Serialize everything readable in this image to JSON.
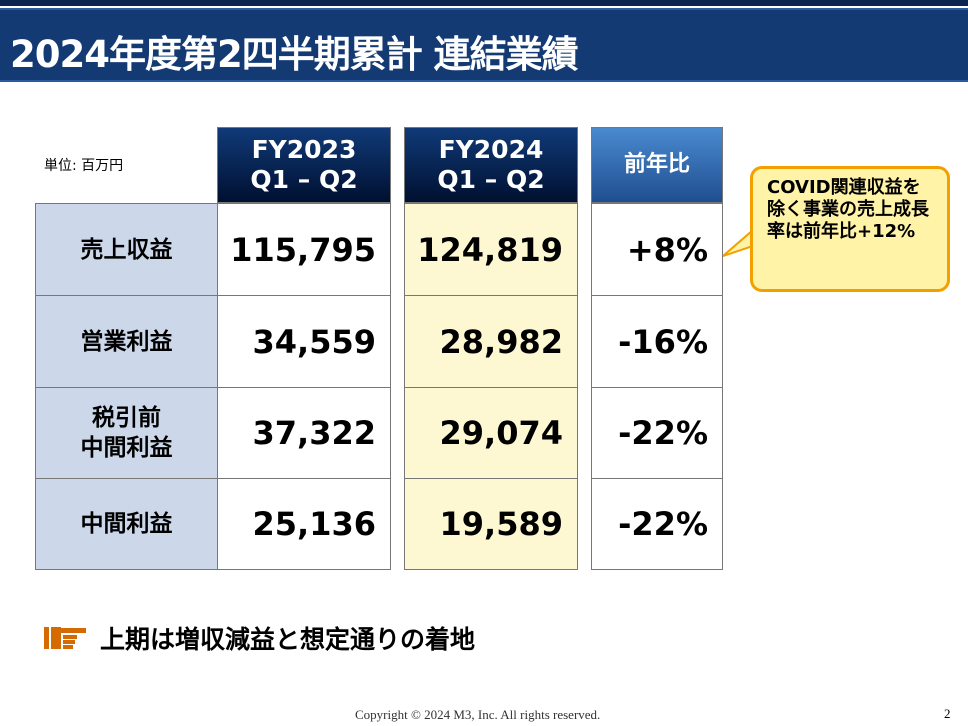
{
  "title": "2024年度第2四半期累計 連結業績",
  "unit": "単位: 百万円",
  "columns": [
    {
      "line1": "FY2023",
      "line2": "Q1 – Q2"
    },
    {
      "line1": "FY2024",
      "line2": "Q1 – Q2"
    },
    {
      "line1": "前年比"
    }
  ],
  "rows": [
    {
      "label1": "売上収益",
      "fy2023": "115,795",
      "fy2024": "124,819",
      "yoy": "+8%"
    },
    {
      "label1": "営業利益",
      "fy2023": "34,559",
      "fy2024": "28,982",
      "yoy": "-16%"
    },
    {
      "label1": "税引前",
      "label2": "中間利益",
      "fy2023": "37,322",
      "fy2024": "29,074",
      "yoy": "-22%"
    },
    {
      "label1": "中間利益",
      "fy2023": "25,136",
      "fy2024": "19,589",
      "yoy": "-22%"
    }
  ],
  "callout": "COVID関連収益を除く事業の売上成長率は前年比+12%",
  "summary": "上期は増収減益と想定通りの着地",
  "footer": "Copyright © 2024  M3, Inc.  All rights reserved.",
  "page": "2",
  "colors": {
    "title_bar": "#143a74",
    "accent": "#d46a00",
    "callout_border": "#f2a000"
  }
}
